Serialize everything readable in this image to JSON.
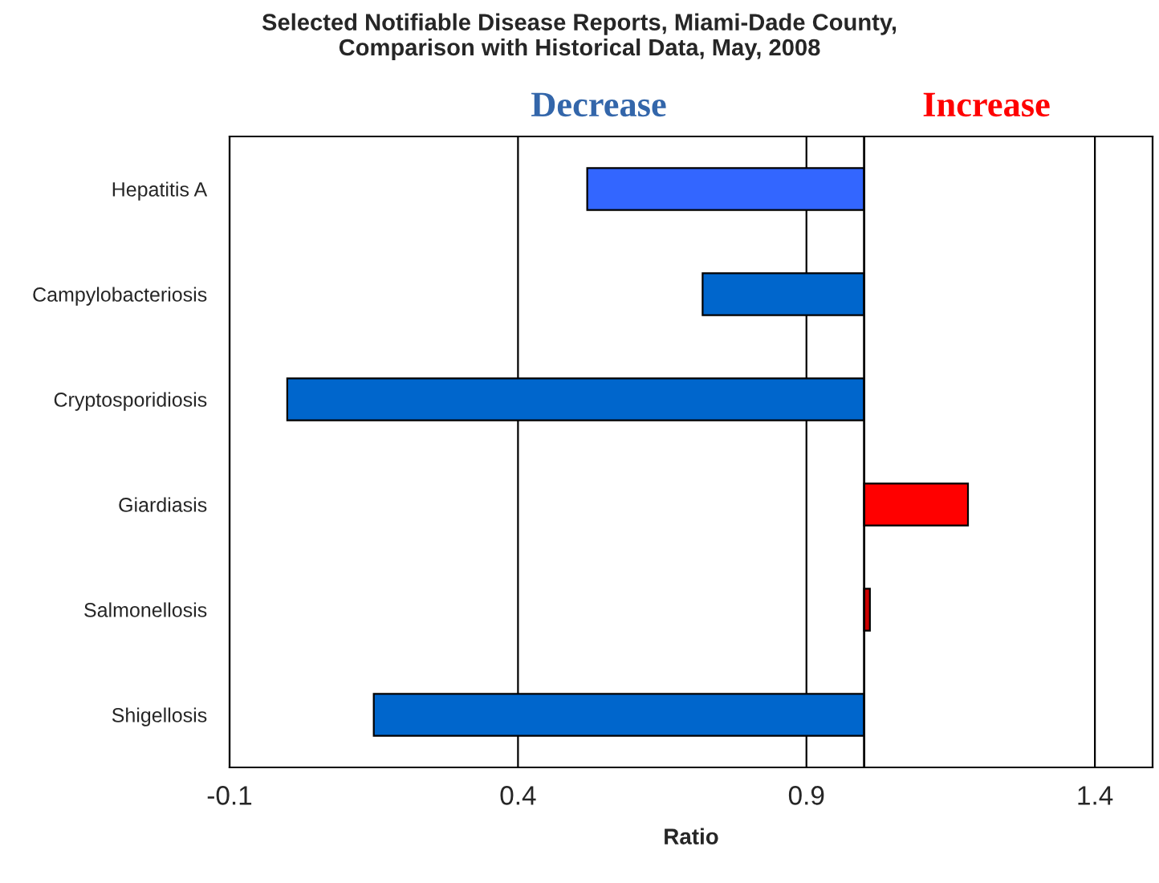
{
  "chart_data": {
    "type": "bar",
    "orientation": "horizontal",
    "title": "Selected Notifiable Disease Reports, Miami-Dade County,\nComparison with Historical Data, May, 2008",
    "xlabel": "Ratio",
    "categories": [
      "Hepatitis A",
      "Campylobacteriosis",
      "Cryptosporidiosis",
      "Giardiasis",
      "Salmonellosis",
      "Shigellosis"
    ],
    "base": [
      1,
      1,
      1,
      1,
      1,
      1
    ],
    "values": [
      -0.48,
      -0.28,
      -1.0,
      0.18,
      0.01,
      -0.85
    ],
    "colors": [
      "#3366ff",
      "#0066cc",
      "#0066cc",
      "#ff0000",
      "#cc0000",
      "#0066cc"
    ],
    "xlim": [
      -0.1,
      1.5
    ],
    "xticks": [
      -0.1,
      0.4,
      0.9,
      1.4
    ],
    "grid": "x",
    "ref_lines": [
      {
        "axis": "x",
        "value": 1,
        "color": "#000000"
      }
    ],
    "annotations": [
      "Decrease",
      "Increase"
    ]
  }
}
